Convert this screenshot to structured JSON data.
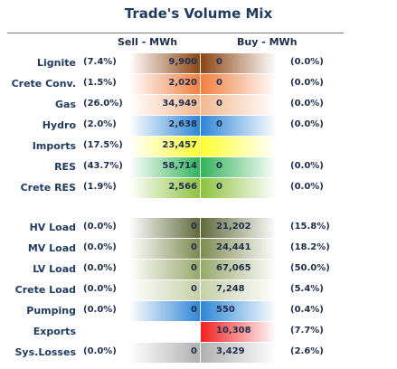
{
  "title": "Trade's Volume Mix",
  "headers": {
    "sell": "Sell - MWh",
    "buy": "Buy - MWh"
  },
  "rows_top": [
    {
      "label": "Lignite",
      "sell_pct": "(7.4%)",
      "sell": "9,900",
      "buy": "0",
      "buy_pct": "(0.0%)",
      "color": "#8b4513"
    },
    {
      "label": "Crete Conv.",
      "sell_pct": "(1.5%)",
      "sell": "2,020",
      "buy": "0",
      "buy_pct": "(0.0%)",
      "color": "#f08040"
    },
    {
      "label": "Gas",
      "sell_pct": "(26.0%)",
      "sell": "34,949",
      "buy": "0",
      "buy_pct": "(0.0%)",
      "color": "#f4b890"
    },
    {
      "label": "Hydro",
      "sell_pct": "(2.0%)",
      "sell": "2,638",
      "buy": "0",
      "buy_pct": "(0.0%)",
      "color": "#2f86d6"
    },
    {
      "label": "Imports",
      "sell_pct": "(17.5%)",
      "sell": "23,457",
      "buy": "",
      "buy_pct": "",
      "color": "#ffff33"
    },
    {
      "label": "RES",
      "sell_pct": "(43.7%)",
      "sell": "58,714",
      "buy": "0",
      "buy_pct": "(0.0%)",
      "color": "#33b35a"
    },
    {
      "label": "Crete RES",
      "sell_pct": "(1.9%)",
      "sell": "2,566",
      "buy": "0",
      "buy_pct": "(0.0%)",
      "color": "#8fc23f"
    }
  ],
  "rows_bottom": [
    {
      "label": "HV Load",
      "sell_pct": "(0.0%)",
      "sell": "0",
      "buy": "21,202",
      "buy_pct": "(15.8%)",
      "color": "#5f6a3a"
    },
    {
      "label": "MV Load",
      "sell_pct": "(0.0%)",
      "sell": "0",
      "buy": "24,441",
      "buy_pct": "(18.2%)",
      "color": "#7d8a50"
    },
    {
      "label": "LV Load",
      "sell_pct": "(0.0%)",
      "sell": "0",
      "buy": "67,065",
      "buy_pct": "(50.0%)",
      "color": "#98a86a"
    },
    {
      "label": "Crete Load",
      "sell_pct": "(0.0%)",
      "sell": "0",
      "buy": "7,248",
      "buy_pct": "(5.4%)",
      "color": "#c6cfa8"
    },
    {
      "label": "Pumping",
      "sell_pct": "(0.0%)",
      "sell": "0",
      "buy": "550",
      "buy_pct": "(0.4%)",
      "color": "#2f86d6"
    },
    {
      "label": "Exports",
      "sell_pct": "",
      "sell": "",
      "buy": "10,308",
      "buy_pct": "(7.7%)",
      "color": "#f02020"
    },
    {
      "label": "Sys.Losses",
      "sell_pct": "(0.0%)",
      "sell": "0",
      "buy": "3,429",
      "buy_pct": "(2.6%)",
      "color": "#b0b0b0"
    }
  ]
}
